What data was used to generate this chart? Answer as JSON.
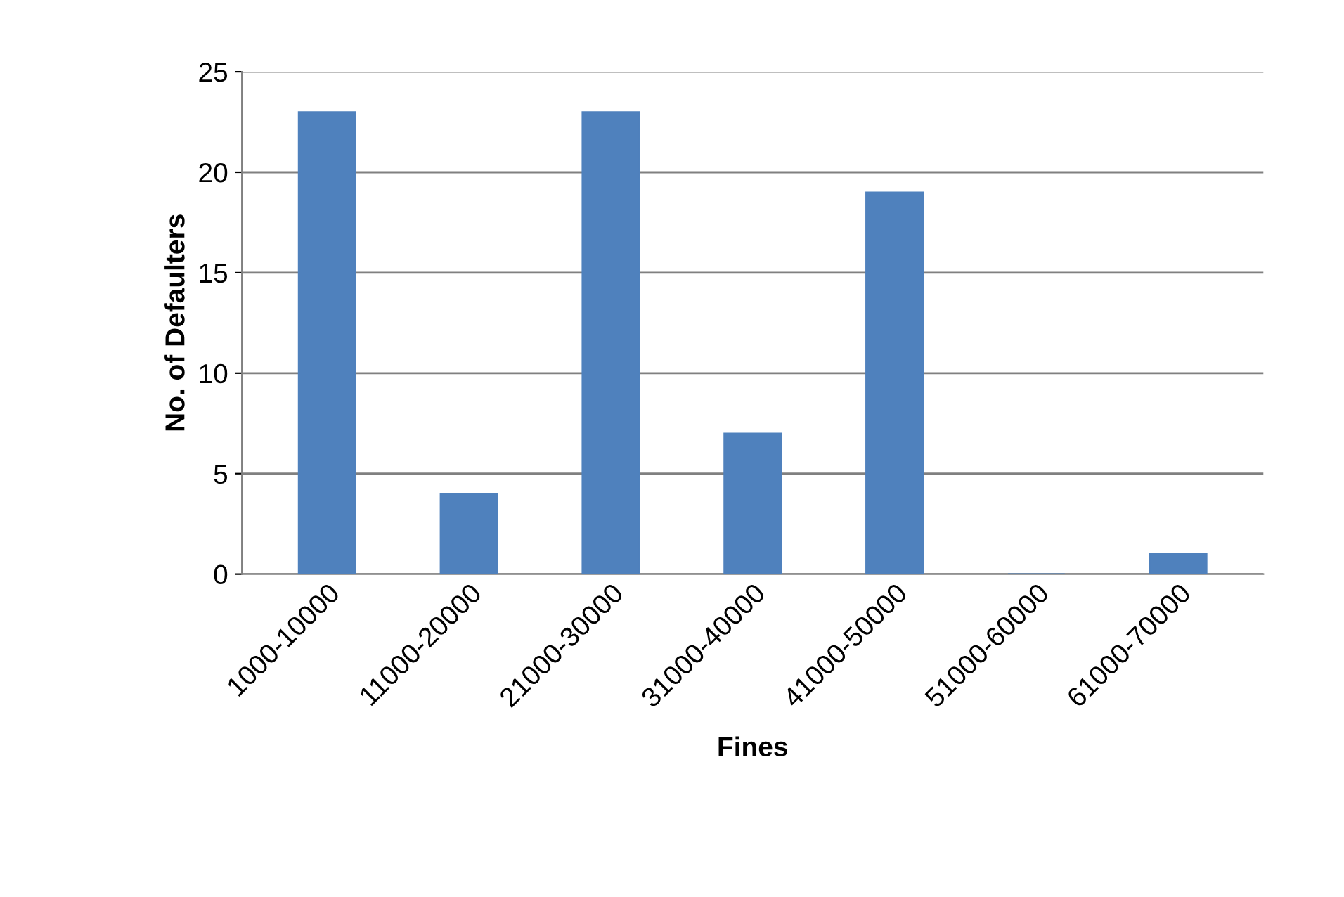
{
  "chart_data": {
    "type": "bar",
    "xlabel": "Fines",
    "ylabel": "No. of Defaulters",
    "categories": [
      "1000-10000",
      "11000-20000",
      "21000-30000",
      "31000-40000",
      "41000-50000",
      "51000-60000",
      "61000-70000"
    ],
    "values": [
      23,
      4,
      23,
      7,
      19,
      0,
      1
    ],
    "color": "#4f81bd",
    "ylim": [
      0,
      25
    ],
    "yticks": [
      0,
      5,
      10,
      15,
      20,
      25
    ],
    "grid": "y"
  }
}
